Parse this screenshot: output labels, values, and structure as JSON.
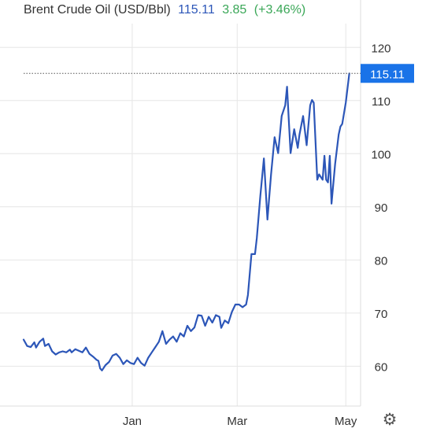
{
  "header": {
    "title": "Brent Crude Oil (USD/Bbl)",
    "price": "115.11",
    "change": "3.85",
    "change_pct": "(+3.46%)"
  },
  "colors": {
    "line": "#2c56b8",
    "price_tag": "#1a73e8",
    "change": "#3aa757",
    "grid": "#e6e6e6"
  },
  "icons": {
    "settings": "gear-icon"
  },
  "chart_data": {
    "type": "line",
    "title": "Brent Crude Oil (USD/Bbl)",
    "xlabel": "",
    "ylabel": "",
    "ylim": [
      52.5,
      123
    ],
    "y_ticks": [
      60,
      70,
      80,
      90,
      100,
      110,
      120
    ],
    "x_ticks": [
      {
        "label": "Jan",
        "date": "2022-01-01"
      },
      {
        "label": "Mar",
        "date": "2022-03-01"
      },
      {
        "label": "May",
        "date": "2022-05-01"
      }
    ],
    "xlim": [
      "2021-11-01",
      "2022-05-04"
    ],
    "last_value": 115.11,
    "grid": true,
    "series": [
      {
        "name": "Brent Crude Oil",
        "points": [
          [
            "2021-11-01",
            65.0
          ],
          [
            "2021-11-03",
            63.8
          ],
          [
            "2021-11-05",
            63.6
          ],
          [
            "2021-11-07",
            64.5
          ],
          [
            "2021-11-08",
            63.5
          ],
          [
            "2021-11-10",
            64.6
          ],
          [
            "2021-11-12",
            65.2
          ],
          [
            "2021-11-13",
            63.8
          ],
          [
            "2021-11-15",
            64.2
          ],
          [
            "2021-11-17",
            62.8
          ],
          [
            "2021-11-19",
            62.2
          ],
          [
            "2021-11-21",
            62.6
          ],
          [
            "2021-11-23",
            62.8
          ],
          [
            "2021-11-25",
            62.6
          ],
          [
            "2021-11-27",
            63.1
          ],
          [
            "2021-11-28",
            62.6
          ],
          [
            "2021-11-30",
            63.2
          ],
          [
            "2021-12-02",
            62.9
          ],
          [
            "2021-12-04",
            62.6
          ],
          [
            "2021-12-06",
            63.5
          ],
          [
            "2021-12-08",
            62.3
          ],
          [
            "2021-12-10",
            61.8
          ],
          [
            "2021-12-12",
            61.2
          ],
          [
            "2021-12-13",
            61.0
          ],
          [
            "2021-12-14",
            59.6
          ],
          [
            "2021-12-15",
            59.2
          ],
          [
            "2021-12-17",
            60.2
          ],
          [
            "2021-12-19",
            60.8
          ],
          [
            "2021-12-21",
            62.0
          ],
          [
            "2021-12-23",
            62.3
          ],
          [
            "2021-12-25",
            61.6
          ],
          [
            "2021-12-27",
            60.4
          ],
          [
            "2021-12-29",
            61.1
          ],
          [
            "2021-12-31",
            60.6
          ],
          [
            "2022-01-02",
            60.4
          ],
          [
            "2022-01-04",
            61.6
          ],
          [
            "2022-01-06",
            60.6
          ],
          [
            "2022-01-08",
            60.1
          ],
          [
            "2022-01-10",
            61.6
          ],
          [
            "2022-01-12",
            62.6
          ],
          [
            "2022-01-14",
            63.6
          ],
          [
            "2022-01-16",
            64.6
          ],
          [
            "2022-01-18",
            66.6
          ],
          [
            "2022-01-20",
            64.2
          ],
          [
            "2022-01-22",
            65.0
          ],
          [
            "2022-01-24",
            65.6
          ],
          [
            "2022-01-26",
            64.6
          ],
          [
            "2022-01-28",
            66.2
          ],
          [
            "2022-01-30",
            65.6
          ],
          [
            "2022-02-01",
            67.6
          ],
          [
            "2022-02-03",
            66.6
          ],
          [
            "2022-02-05",
            67.3
          ],
          [
            "2022-02-07",
            69.6
          ],
          [
            "2022-02-09",
            69.5
          ],
          [
            "2022-02-11",
            67.6
          ],
          [
            "2022-02-13",
            69.3
          ],
          [
            "2022-02-15",
            68.2
          ],
          [
            "2022-02-17",
            69.6
          ],
          [
            "2022-02-19",
            69.3
          ],
          [
            "2022-02-20",
            67.2
          ],
          [
            "2022-02-22",
            68.6
          ],
          [
            "2022-02-24",
            68.1
          ],
          [
            "2022-02-26",
            70.2
          ],
          [
            "2022-02-28",
            71.6
          ],
          [
            "2022-03-02",
            71.6
          ],
          [
            "2022-03-04",
            71.1
          ],
          [
            "2022-03-06",
            71.6
          ],
          [
            "2022-03-07",
            73.4
          ],
          [
            "2022-03-09",
            81.1
          ],
          [
            "2022-03-11",
            81.1
          ],
          [
            "2022-03-12",
            84.1
          ],
          [
            "2022-03-14",
            92.1
          ],
          [
            "2022-03-16",
            99.1
          ],
          [
            "2022-03-18",
            87.6
          ],
          [
            "2022-03-20",
            96.1
          ],
          [
            "2022-03-22",
            103.1
          ],
          [
            "2022-03-24",
            100.1
          ],
          [
            "2022-03-26",
            107.1
          ],
          [
            "2022-03-28",
            109.1
          ],
          [
            "2022-03-29",
            112.6
          ],
          [
            "2022-03-30",
            106.1
          ],
          [
            "2022-03-31",
            100.1
          ],
          [
            "2022-04-02",
            104.6
          ],
          [
            "2022-04-04",
            101.1
          ],
          [
            "2022-04-05",
            103.6
          ],
          [
            "2022-04-07",
            107.1
          ],
          [
            "2022-04-09",
            101.6
          ],
          [
            "2022-04-11",
            109.1
          ],
          [
            "2022-04-12",
            110.1
          ],
          [
            "2022-04-13",
            109.6
          ],
          [
            "2022-04-15",
            95.1
          ],
          [
            "2022-04-16",
            96.1
          ],
          [
            "2022-04-18",
            95.1
          ],
          [
            "2022-04-19",
            99.6
          ],
          [
            "2022-04-20",
            95.1
          ],
          [
            "2022-04-21",
            94.6
          ],
          [
            "2022-04-22",
            99.6
          ],
          [
            "2022-04-23",
            90.6
          ],
          [
            "2022-04-25",
            98.1
          ],
          [
            "2022-04-27",
            103.6
          ],
          [
            "2022-04-28",
            105.1
          ],
          [
            "2022-04-29",
            105.6
          ],
          [
            "2022-05-01",
            109.6
          ],
          [
            "2022-05-03",
            115.11
          ]
        ]
      }
    ]
  }
}
